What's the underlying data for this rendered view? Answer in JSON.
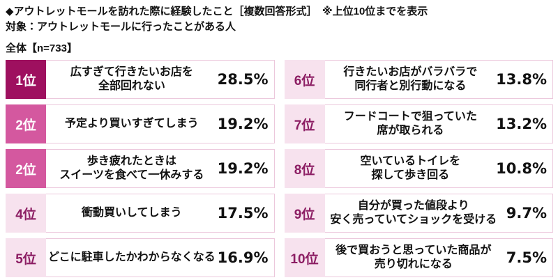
{
  "header": {
    "title": "◆アウトレットモールを訪れた際に経験したこと［複数回答形式］　※上位10位までを表示",
    "subtitle": "対象：アウトレットモールに行ったことがある人",
    "sample": "全体【n=733】"
  },
  "rows": [
    {
      "rank": "1位",
      "label": "広すぎて行きたいお店を\n全部回れない",
      "value": "28.5%",
      "tier": "dark"
    },
    {
      "rank": "2位",
      "label": "予定より買いすぎてしまう",
      "value": "19.2%",
      "tier": "mid"
    },
    {
      "rank": "2位",
      "label": "歩き疲れたときは\nスイーツを食べて一休みする",
      "value": "19.2%",
      "tier": "mid"
    },
    {
      "rank": "4位",
      "label": "衝動買いしてしまう",
      "value": "17.5%",
      "tier": "light"
    },
    {
      "rank": "5位",
      "label": "どこに駐車したかわからなくなる",
      "value": "16.9%",
      "tier": "light"
    },
    {
      "rank": "6位",
      "label": "行きたいお店がバラバラで\n同行者と別行動になる",
      "value": "13.8%",
      "tier": "light"
    },
    {
      "rank": "7位",
      "label": "フードコートで狙っていた\n席が取られる",
      "value": "13.2%",
      "tier": "light"
    },
    {
      "rank": "8位",
      "label": "空いているトイレを\n探して歩き回る",
      "value": "10.8%",
      "tier": "light"
    },
    {
      "rank": "9位",
      "label": "自分が買った値段より\n安く売っていてショックを受ける",
      "value": "9.7%",
      "tier": "light"
    },
    {
      "rank": "10位",
      "label": "後で買おうと思っていた商品が\n売り切れになる",
      "value": "7.5%",
      "tier": "light"
    }
  ],
  "colors": {
    "row_border": "#ecc8dc",
    "tiers": {
      "dark": {
        "bg": "#9e105f",
        "text": "#ffffff"
      },
      "mid": {
        "bg": "#d4589f",
        "text": "#ffffff"
      },
      "light": {
        "bg": "#f7e2ee",
        "text": "#8c1d63"
      }
    }
  },
  "chart_data": {
    "type": "table",
    "title": "アウトレットモールを訪れた際に経験したこと［複数回答形式］ ※上位10位までを表示",
    "target": "アウトレットモールに行ったことがある人",
    "n": 733,
    "ranks": [
      "1位",
      "2位",
      "2位",
      "4位",
      "5位",
      "6位",
      "7位",
      "8位",
      "9位",
      "10位"
    ],
    "categories": [
      "広すぎて行きたいお店を全部回れない",
      "予定より買いすぎてしまう",
      "歩き疲れたときはスイーツを食べて一休みする",
      "衝動買いしてしまう",
      "どこに駐車したかわからなくなる",
      "行きたいお店がバラバラで同行者と別行動になる",
      "フードコートで狙っていた席が取られる",
      "空いているトイレを探して歩き回る",
      "自分が買った値段より安く売っていてショックを受ける",
      "後で買おうと思っていた商品が売り切れになる"
    ],
    "values": [
      28.5,
      19.2,
      19.2,
      17.5,
      16.9,
      13.8,
      13.2,
      10.8,
      9.7,
      7.5
    ],
    "unit": "%",
    "layout": "two-column ranked list, ranks 1-5 left, 6-10 right"
  }
}
